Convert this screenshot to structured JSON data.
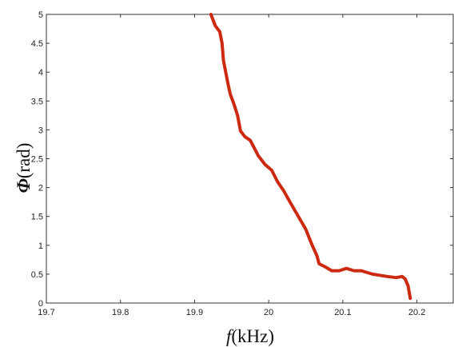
{
  "chart_data": {
    "type": "line",
    "title": "",
    "xlabel": {
      "symbol": "f",
      "unit": "(kHz)"
    },
    "ylabel": {
      "symbol": "Φ",
      "unit": "(rad)"
    },
    "xlim": [
      19.7,
      20.25
    ],
    "ylim": [
      0,
      5
    ],
    "x_ticks": [
      19.7,
      19.8,
      19.9,
      20,
      20.1,
      20.2
    ],
    "x_tick_labels": [
      "19.7",
      "19.8",
      "19.9",
      "20",
      "20.1",
      "20.2"
    ],
    "y_ticks": [
      0,
      0.5,
      1,
      1.5,
      2,
      2.5,
      3,
      3.5,
      4,
      4.5,
      5
    ],
    "y_tick_labels": [
      "0",
      "0.5",
      "1",
      "1.5",
      "2",
      "2.5",
      "3",
      "3.5",
      "4",
      "4.5",
      "5"
    ],
    "grid": false,
    "legend": "none",
    "series": [
      {
        "color": "#cc2a10",
        "x": [
          19.922,
          19.928,
          19.934,
          19.937,
          19.939,
          19.942,
          19.945,
          19.948,
          19.953,
          19.958,
          19.962,
          19.968,
          19.975,
          19.98,
          19.986,
          19.995,
          20.004,
          20.012,
          20.02,
          20.03,
          20.04,
          20.05,
          20.058,
          20.065,
          20.068,
          20.077,
          20.085,
          20.095,
          20.105,
          20.115,
          20.125,
          20.14,
          20.16,
          20.172,
          20.18,
          20.184,
          20.188,
          20.191
        ],
        "y": [
          5.0,
          4.8,
          4.7,
          4.5,
          4.2,
          4.0,
          3.8,
          3.62,
          3.45,
          3.25,
          2.98,
          2.88,
          2.82,
          2.7,
          2.55,
          2.4,
          2.3,
          2.1,
          1.95,
          1.72,
          1.5,
          1.28,
          1.02,
          0.82,
          0.68,
          0.62,
          0.56,
          0.56,
          0.6,
          0.56,
          0.56,
          0.5,
          0.46,
          0.44,
          0.46,
          0.42,
          0.3,
          0.08
        ]
      }
    ]
  }
}
